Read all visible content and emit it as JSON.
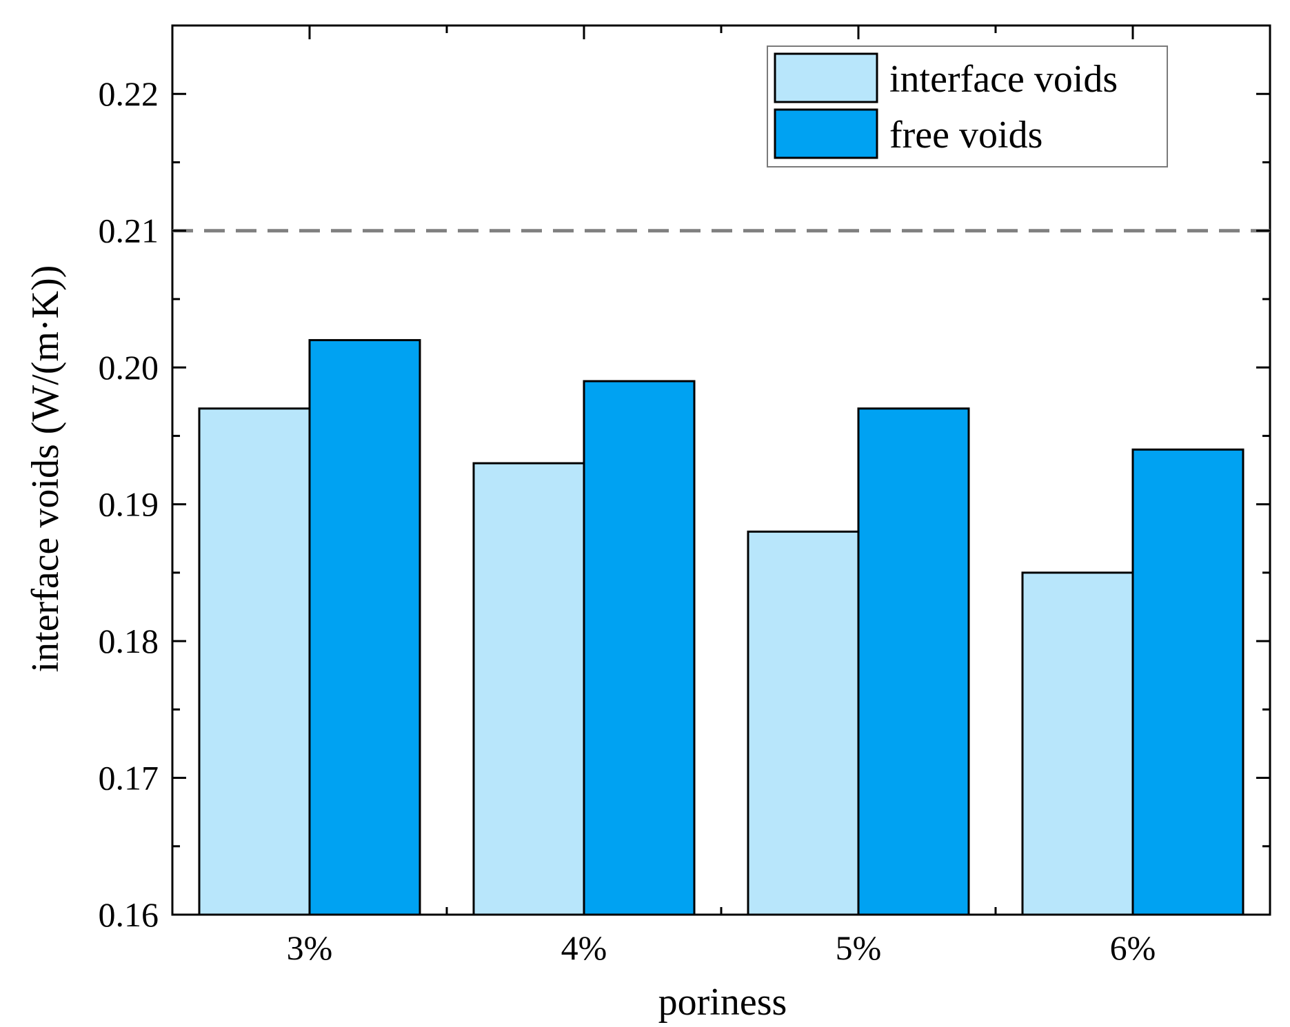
{
  "chart_data": {
    "type": "bar",
    "title": "",
    "xlabel": "poriness",
    "ylabel": "interface voids (W/(m·K))",
    "categories": [
      "3%",
      "4%",
      "5%",
      "6%"
    ],
    "series": [
      {
        "name": "interface voids",
        "color": "#b8e6fb",
        "values": [
          0.197,
          0.193,
          0.188,
          0.185
        ]
      },
      {
        "name": "free voids",
        "color": "#00a2f2",
        "values": [
          0.202,
          0.199,
          0.197,
          0.194
        ]
      }
    ],
    "ylim": [
      0.16,
      0.225
    ],
    "yticks": [
      "0.16",
      "0.17",
      "0.18",
      "0.19",
      "0.20",
      "0.21",
      "0.22"
    ],
    "ytick_values": [
      0.16,
      0.17,
      0.18,
      0.19,
      0.2,
      0.21,
      0.22
    ],
    "reference_line": {
      "value": 0.21,
      "style": "dashed",
      "color": "#808080"
    },
    "grid": false,
    "legend_position": "top-right"
  }
}
